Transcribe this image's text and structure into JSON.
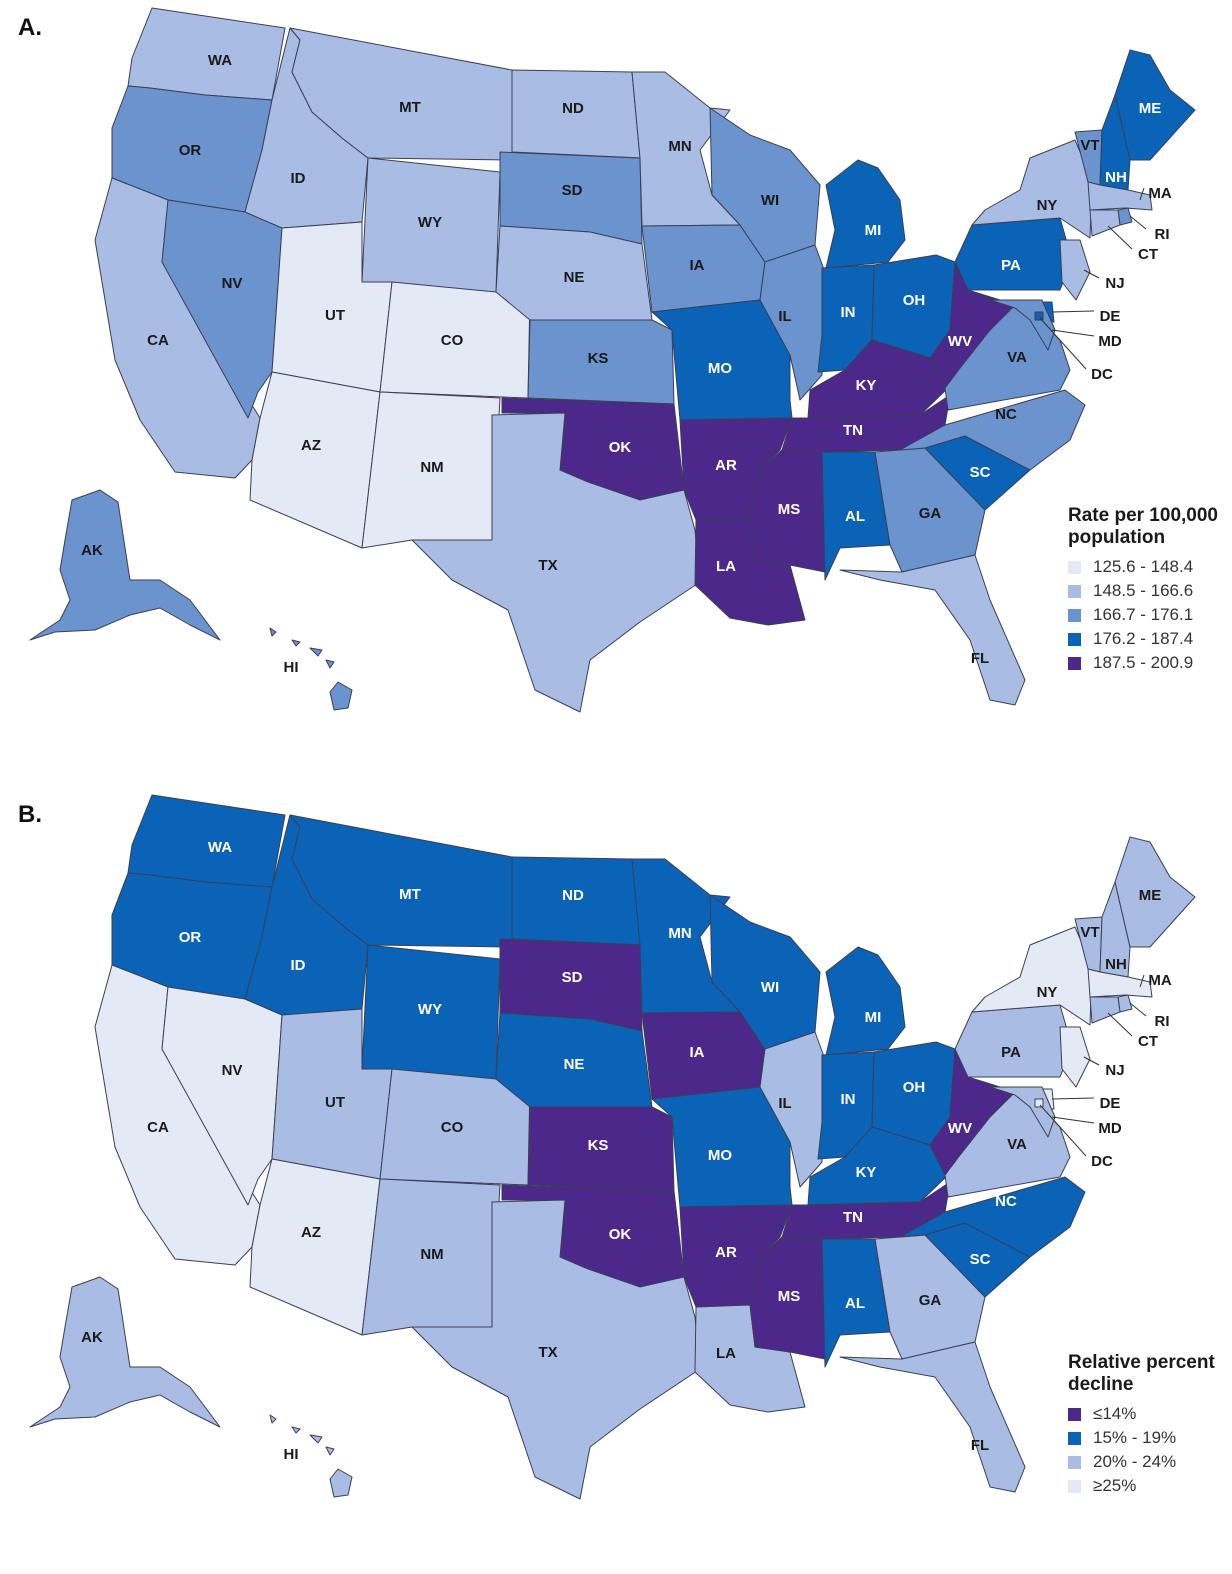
{
  "colors": {
    "c1": "#e4e9f6",
    "c2": "#a9bde4",
    "c3": "#6b93cd",
    "c4": "#0a63b6",
    "c5": "#4b2889",
    "border": "#3a3f55"
  },
  "panel_a": {
    "label": "A.",
    "legend": {
      "title_line1": "Rate per 100,000",
      "title_line2": "population",
      "bins": [
        "125.6 - 148.4",
        "148.5 - 166.6",
        "166.7 - 176.1",
        "176.2 - 187.4",
        "187.5 - 200.9"
      ]
    },
    "states": {
      "WA": "c2",
      "OR": "c3",
      "CA": "c2",
      "NV": "c3",
      "ID": "c2",
      "MT": "c2",
      "WY": "c2",
      "UT": "c1",
      "CO": "c1",
      "AZ": "c1",
      "NM": "c1",
      "ND": "c2",
      "SD": "c3",
      "NE": "c2",
      "KS": "c3",
      "OK": "c5",
      "TX": "c2",
      "MN": "c2",
      "IA": "c3",
      "MO": "c4",
      "AR": "c5",
      "LA": "c5",
      "WI": "c3",
      "IL": "c3",
      "MI": "c4",
      "IN": "c4",
      "OH": "c4",
      "KY": "c5",
      "TN": "c5",
      "MS": "c5",
      "AL": "c4",
      "GA": "c3",
      "FL": "c2",
      "SC": "c4",
      "NC": "c3",
      "VA": "c3",
      "WV": "c5",
      "PA": "c4",
      "NY": "c2",
      "VT": "c3",
      "NH": "c4",
      "ME": "c4",
      "MA": "c2",
      "RI": "c3",
      "CT": "c2",
      "NJ": "c2",
      "DE": "c4",
      "MD": "c3",
      "DC": "c4",
      "AK": "c3",
      "HI": "c3"
    }
  },
  "panel_b": {
    "label": "B.",
    "legend": {
      "title_line1": "Relative percent",
      "title_line2": "decline",
      "bins": [
        "≤14%",
        "15% - 19%",
        "20% - 24%",
        "≥25%"
      ]
    },
    "states": {
      "WA": "c4",
      "OR": "c4",
      "CA": "c1",
      "NV": "c1",
      "ID": "c4",
      "MT": "c4",
      "WY": "c4",
      "UT": "c2",
      "CO": "c2",
      "AZ": "c1",
      "NM": "c2",
      "ND": "c4",
      "SD": "c5",
      "NE": "c4",
      "KS": "c5",
      "OK": "c5",
      "TX": "c2",
      "MN": "c4",
      "IA": "c5",
      "MO": "c4",
      "AR": "c5",
      "LA": "c2",
      "WI": "c4",
      "IL": "c2",
      "MI": "c4",
      "IN": "c4",
      "OH": "c4",
      "KY": "c4",
      "TN": "c5",
      "MS": "c5",
      "AL": "c4",
      "GA": "c2",
      "FL": "c2",
      "SC": "c4",
      "NC": "c4",
      "VA": "c2",
      "WV": "c5",
      "PA": "c2",
      "NY": "c1",
      "VT": "c2",
      "NH": "c2",
      "ME": "c2",
      "MA": "c1",
      "RI": "c2",
      "CT": "c2",
      "NJ": "c1",
      "DE": "c1",
      "MD": "c2",
      "DC": "c1",
      "AK": "c2",
      "HI": "c2"
    }
  },
  "state_labels": {
    "WA": "WA",
    "OR": "OR",
    "CA": "CA",
    "NV": "NV",
    "ID": "ID",
    "MT": "MT",
    "WY": "WY",
    "UT": "UT",
    "CO": "CO",
    "AZ": "AZ",
    "NM": "NM",
    "ND": "ND",
    "SD": "SD",
    "NE": "NE",
    "KS": "KS",
    "OK": "OK",
    "TX": "TX",
    "MN": "MN",
    "IA": "IA",
    "MO": "MO",
    "AR": "AR",
    "LA": "LA",
    "WI": "WI",
    "IL": "IL",
    "MI": "MI",
    "IN": "IN",
    "OH": "OH",
    "KY": "KY",
    "TN": "TN",
    "MS": "MS",
    "AL": "AL",
    "GA": "GA",
    "FL": "FL",
    "SC": "SC",
    "NC": "NC",
    "VA": "VA",
    "WV": "WV",
    "PA": "PA",
    "NY": "NY",
    "VT": "VT",
    "NH": "NH",
    "ME": "ME",
    "MA": "MA",
    "RI": "RI",
    "CT": "CT",
    "NJ": "NJ",
    "DE": "DE",
    "MD": "MD",
    "DC": "DC",
    "AK": "AK",
    "HI": "HI"
  }
}
